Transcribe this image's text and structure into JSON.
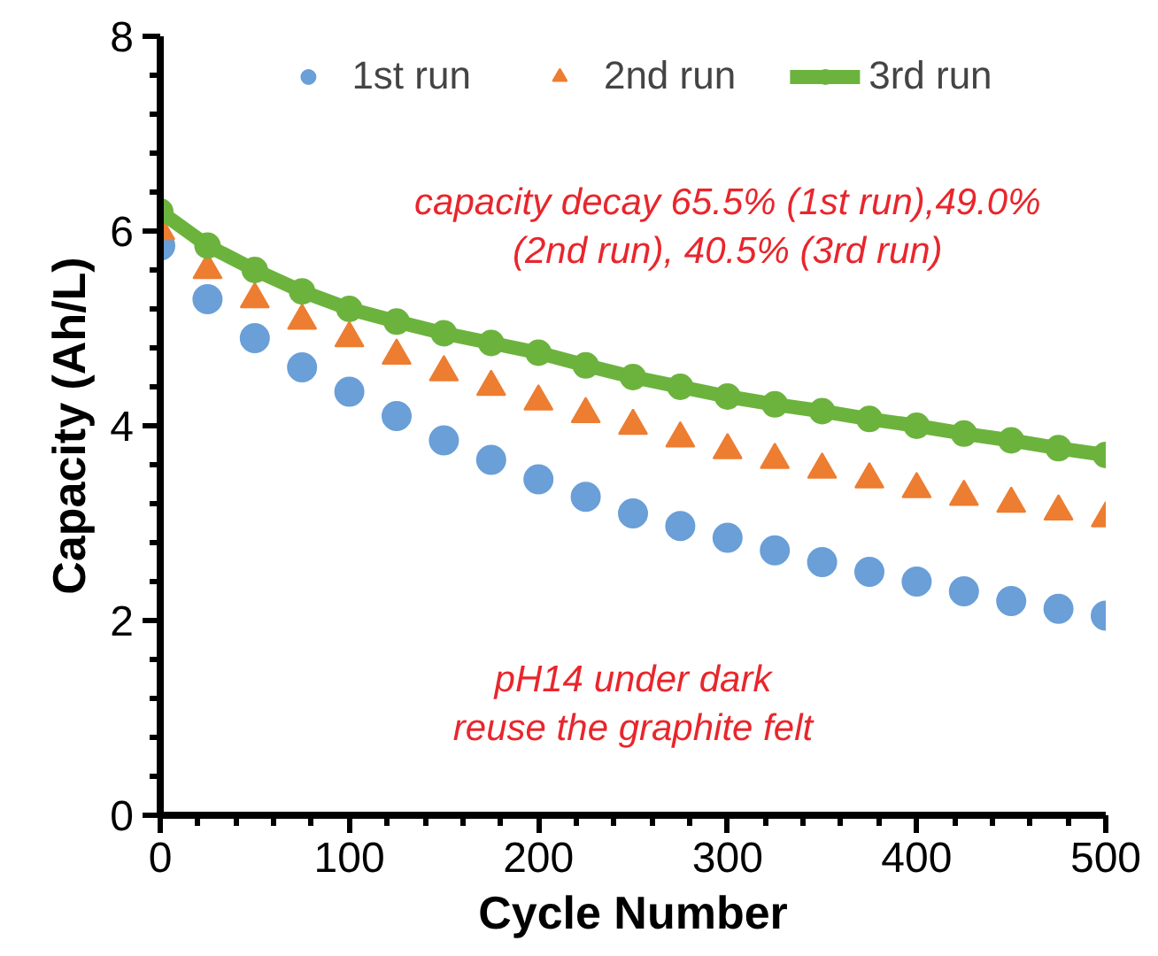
{
  "chart_data": {
    "type": "scatter",
    "xlabel": "Cycle Number",
    "ylabel": "Capacity (Ah/L)",
    "xlim": [
      0,
      500
    ],
    "ylim": [
      0,
      8
    ],
    "xticks": [
      0,
      100,
      200,
      300,
      400,
      500
    ],
    "yticks": [
      0,
      2,
      4,
      6,
      8
    ],
    "grid": false,
    "legend": "top",
    "annotations": [
      "capacity decay 65.5% (1st run),49.0%\n(2nd run), 40.5% (3rd run)",
      "pH14 under dark\nreuse the graphite felt"
    ],
    "series": [
      {
        "name": "1st run",
        "marker": "circle",
        "color": "#6a9fd8",
        "x": [
          0,
          25,
          50,
          75,
          100,
          125,
          150,
          175,
          200,
          225,
          250,
          275,
          300,
          325,
          350,
          375,
          400,
          425,
          450,
          475,
          500
        ],
        "values": [
          5.85,
          5.3,
          4.9,
          4.6,
          4.35,
          4.1,
          3.85,
          3.65,
          3.45,
          3.27,
          3.1,
          2.97,
          2.85,
          2.72,
          2.6,
          2.5,
          2.4,
          2.3,
          2.2,
          2.12,
          2.05
        ]
      },
      {
        "name": "2nd run",
        "marker": "triangle",
        "color": "#ed7d31",
        "x": [
          0,
          25,
          50,
          75,
          100,
          125,
          150,
          175,
          200,
          225,
          250,
          275,
          300,
          325,
          350,
          375,
          400,
          425,
          450,
          475,
          500
        ],
        "values": [
          6.0,
          5.6,
          5.3,
          5.08,
          4.9,
          4.72,
          4.55,
          4.4,
          4.25,
          4.12,
          4.0,
          3.87,
          3.75,
          3.65,
          3.55,
          3.45,
          3.35,
          3.27,
          3.2,
          3.12,
          3.05
        ]
      },
      {
        "name": "3rd run",
        "type": "line",
        "marker": "circle",
        "color": "#6cb33e",
        "x": [
          0,
          25,
          50,
          75,
          100,
          125,
          150,
          175,
          200,
          225,
          250,
          275,
          300,
          325,
          350,
          375,
          400,
          425,
          450,
          475,
          500
        ],
        "values": [
          6.2,
          5.85,
          5.6,
          5.38,
          5.2,
          5.07,
          4.95,
          4.85,
          4.75,
          4.62,
          4.5,
          4.4,
          4.3,
          4.22,
          4.15,
          4.07,
          4.0,
          3.92,
          3.85,
          3.77,
          3.7
        ]
      }
    ]
  }
}
